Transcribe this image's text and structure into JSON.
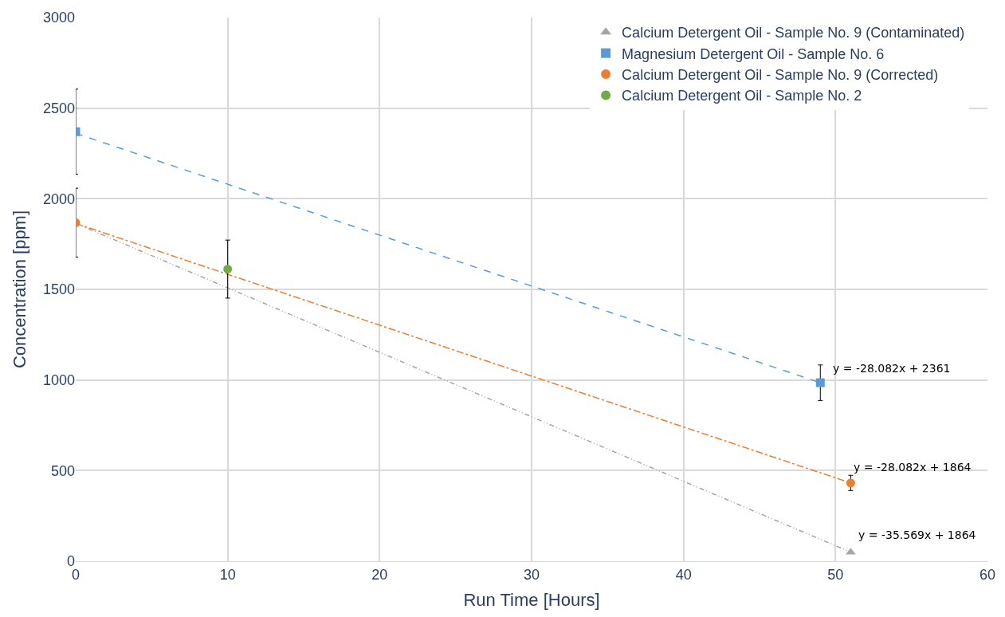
{
  "chart_data": {
    "type": "scatter",
    "xlabel": "Run Time [Hours]",
    "ylabel": "Concentration [ppm]",
    "xlim": [
      0,
      60
    ],
    "xticks": [
      0,
      10,
      20,
      30,
      40,
      50,
      60
    ],
    "ylim": [
      0,
      3000
    ],
    "yticks": [
      0,
      500,
      1000,
      1500,
      2000,
      2500,
      3000
    ],
    "grid": true,
    "legend": "top right",
    "series": [
      {
        "name": "Calcium Detergent Oil - Sample No. 9 (Contaminated)",
        "color": "#a5a5a5",
        "marker": "triangle",
        "x": [
          51
        ],
        "values": [
          50
        ]
      },
      {
        "name": "Magnesium Detergent Oil - Sample No. 6",
        "color": "#5b9bd5",
        "marker": "square",
        "x": [
          0,
          49
        ],
        "values": [
          2370,
          985
        ],
        "errors": [
          235,
          98
        ]
      },
      {
        "name": "Calcium Detergent Oil - Sample No. 9 (Corrected)",
        "color": "#ed7d31",
        "marker": "circle",
        "x": [
          0,
          51
        ],
        "values": [
          1868,
          432
        ],
        "errors": [
          190,
          42
        ]
      },
      {
        "name": "Calcium Detergent Oil - Sample No. 2",
        "color": "#70ad47",
        "marker": "circle",
        "x": [
          10
        ],
        "values": [
          1612
        ],
        "errors": [
          160
        ]
      },
      {
        "type": "line",
        "color": "#5b9bd5",
        "line_style": "dashed",
        "x": [
          0,
          49
        ],
        "values": [
          2361,
          985
        ]
      },
      {
        "type": "line",
        "color": "#ed7d31",
        "line_style": "dashdot",
        "x": [
          0,
          51
        ],
        "values": [
          1864,
          432
        ]
      },
      {
        "type": "line",
        "color": "#a5a5a5",
        "line_style": "dashdotdot",
        "x": [
          0,
          51
        ],
        "values": [
          1864,
          50
        ]
      }
    ],
    "annotations": [
      "y = -28.082x + 2361",
      "y = -28.082x + 1864",
      "y = -35.569x + 1864"
    ]
  }
}
